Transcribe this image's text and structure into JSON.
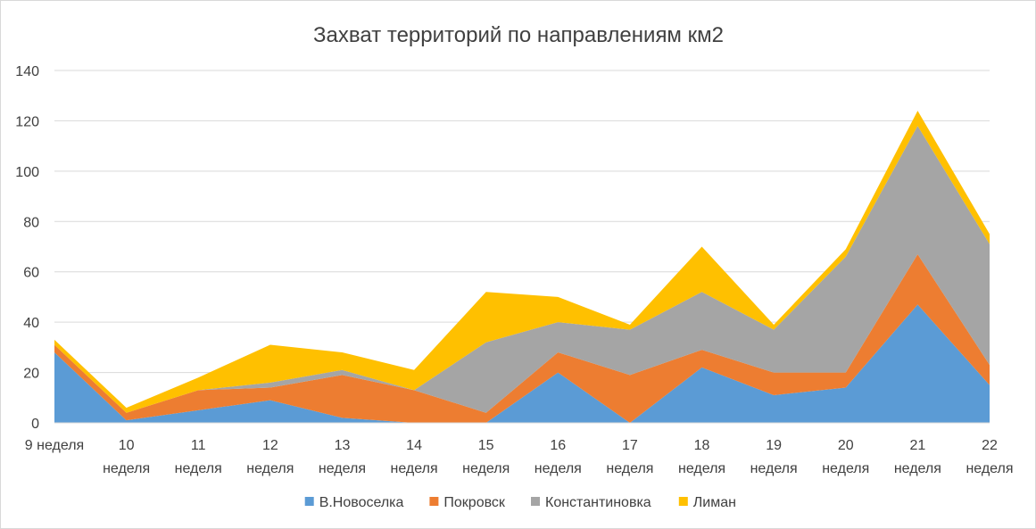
{
  "chart_data": {
    "type": "area",
    "stacked": true,
    "title": "Захват территорий по направлениям км2",
    "xlabel": "",
    "ylabel": "",
    "categories": [
      [
        "9 неделя"
      ],
      [
        "10",
        "неделя"
      ],
      [
        "11",
        "неделя"
      ],
      [
        "12",
        "неделя"
      ],
      [
        "13",
        "неделя"
      ],
      [
        "14",
        "неделя"
      ],
      [
        "15",
        "неделя"
      ],
      [
        "16",
        "неделя"
      ],
      [
        "17",
        "неделя"
      ],
      [
        "18",
        "неделя"
      ],
      [
        "19",
        "неделя"
      ],
      [
        "20",
        "неделя"
      ],
      [
        "21",
        "неделя"
      ],
      [
        "22",
        "неделя"
      ]
    ],
    "ylim": [
      0,
      140
    ],
    "yticks": [
      0,
      20,
      40,
      60,
      80,
      100,
      120,
      140
    ],
    "grid": true,
    "legend_position": "bottom",
    "series": [
      {
        "name": "В.Новоселка",
        "color": "#5b9bd5",
        "values": [
          28,
          1,
          5,
          9,
          2,
          0,
          0,
          20,
          0,
          22,
          11,
          14,
          47,
          15
        ]
      },
      {
        "name": "Покровск",
        "color": "#ed7d31",
        "values": [
          3,
          3,
          8,
          5,
          17,
          13,
          4,
          8,
          19,
          7,
          9,
          6,
          20,
          8
        ]
      },
      {
        "name": "Константиновка",
        "color": "#a5a5a5",
        "values": [
          0,
          0,
          0,
          2,
          2,
          0,
          28,
          12,
          18,
          23,
          17,
          46,
          51,
          48
        ]
      },
      {
        "name": "Лиман",
        "color": "#ffc000",
        "values": [
          2,
          2,
          5,
          15,
          7,
          8,
          20,
          10,
          2,
          18,
          2,
          3,
          6,
          4
        ]
      }
    ]
  }
}
